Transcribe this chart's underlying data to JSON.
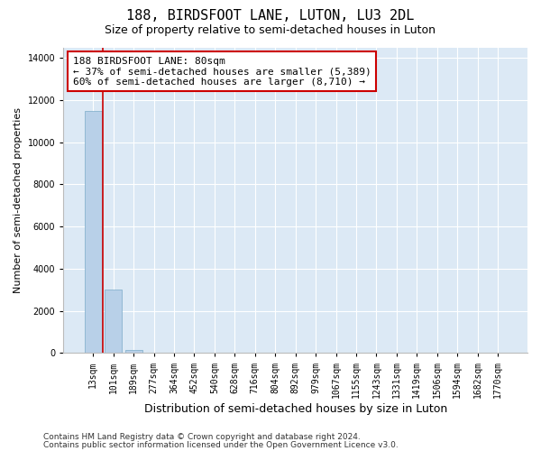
{
  "title": "188, BIRDSFOOT LANE, LUTON, LU3 2DL",
  "subtitle": "Size of property relative to semi-detached houses in Luton",
  "xlabel": "Distribution of semi-detached houses by size in Luton",
  "ylabel": "Number of semi-detached properties",
  "categories": [
    "13sqm",
    "101sqm",
    "189sqm",
    "277sqm",
    "364sqm",
    "452sqm",
    "540sqm",
    "628sqm",
    "716sqm",
    "804sqm",
    "892sqm",
    "979sqm",
    "1067sqm",
    "1155sqm",
    "1243sqm",
    "1331sqm",
    "1419sqm",
    "1506sqm",
    "1594sqm",
    "1682sqm",
    "1770sqm"
  ],
  "values": [
    11480,
    3000,
    155,
    0,
    0,
    0,
    0,
    0,
    0,
    0,
    0,
    0,
    0,
    0,
    0,
    0,
    0,
    0,
    0,
    0,
    0
  ],
  "bar_color": "#b8d0e8",
  "bar_edge_color": "#7aaac8",
  "property_line_color": "#cc0000",
  "annotation_text": "188 BIRDSFOOT LANE: 80sqm\n← 37% of semi-detached houses are smaller (5,389)\n60% of semi-detached houses are larger (8,710) →",
  "annotation_box_color": "#ffffff",
  "annotation_box_edge": "#cc0000",
  "ylim": [
    0,
    14500
  ],
  "yticks": [
    0,
    2000,
    4000,
    6000,
    8000,
    10000,
    12000,
    14000
  ],
  "grid_color": "#ffffff",
  "background_color": "#dce9f5",
  "footer_line1": "Contains HM Land Registry data © Crown copyright and database right 2024.",
  "footer_line2": "Contains public sector information licensed under the Open Government Licence v3.0.",
  "title_fontsize": 11,
  "subtitle_fontsize": 9,
  "annotation_fontsize": 8,
  "tick_fontsize": 7,
  "ylabel_fontsize": 8,
  "xlabel_fontsize": 9,
  "footer_fontsize": 6.5
}
